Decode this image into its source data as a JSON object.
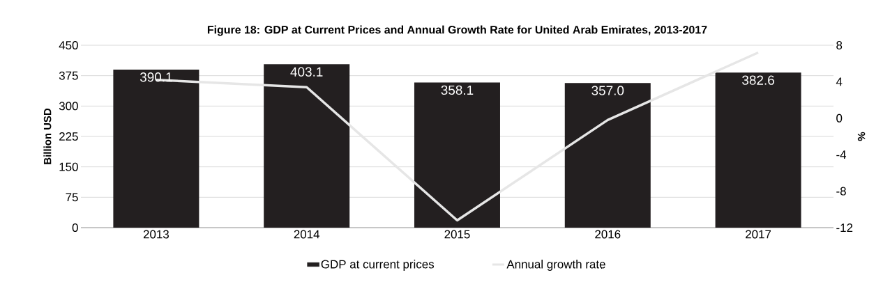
{
  "chart_data": {
    "type": "bar",
    "title": "Figure 18: GDP at Current Prices and Annual Growth Rate for United Arab Emirates, 2013-2017",
    "ylabel": "Billion USD",
    "y2label": "%",
    "categories": [
      "2013",
      "2014",
      "2015",
      "2016",
      "2017"
    ],
    "series": [
      {
        "name": "GDP at current prices",
        "color": "#231f20",
        "values": [
          390.1,
          403.1,
          358.1,
          357.0,
          382.6
        ],
        "value_labels": [
          "390.1",
          "403.1",
          "358.1",
          "357.0",
          "382.6"
        ]
      },
      {
        "name": "Annual growth rate",
        "type": "line",
        "axis": "y2",
        "color": "#e6e6e6",
        "values": [
          4.2,
          3.4,
          -11.2,
          -0.2,
          7.2
        ]
      }
    ],
    "ylim": [
      0,
      450
    ],
    "yticks": [
      0,
      75,
      150,
      225,
      300,
      375,
      450
    ],
    "y2lim": [
      -12,
      8
    ],
    "y2ticks": [
      -12,
      -8,
      -4,
      0,
      4,
      8
    ],
    "grid": "y",
    "legend": "bottom"
  }
}
